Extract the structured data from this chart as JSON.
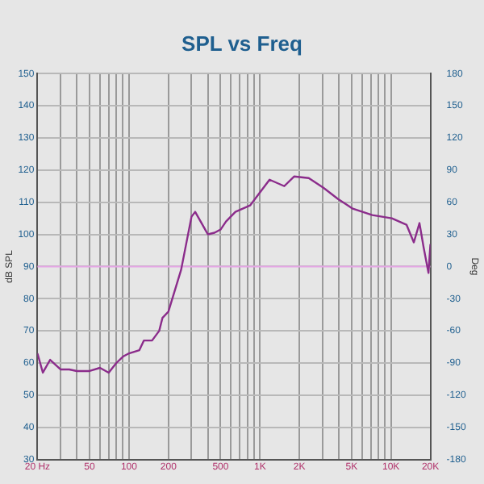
{
  "chart_data": {
    "type": "line",
    "title": "SPL vs Freq",
    "ylabel": "dB SPL",
    "y2label": "Deg",
    "log": "x",
    "grid": true,
    "legend": false,
    "marker": "none",
    "line_style": "solid",
    "xlim": [
      20,
      20000
    ],
    "xticks": [
      {
        "value": 20,
        "label": "20 Hz"
      },
      {
        "value": 30,
        "label": null
      },
      {
        "value": 40,
        "label": null
      },
      50,
      {
        "value": 60,
        "label": null
      },
      {
        "value": 70,
        "label": null
      },
      {
        "value": 80,
        "label": null
      },
      {
        "value": 90,
        "label": null
      },
      100,
      200,
      {
        "value": 300,
        "label": null
      },
      {
        "value": 400,
        "label": null
      },
      500,
      {
        "value": 600,
        "label": null
      },
      {
        "value": 700,
        "label": null
      },
      {
        "value": 800,
        "label": null
      },
      {
        "value": 900,
        "label": null
      },
      {
        "value": 1000,
        "label": "1K"
      },
      {
        "value": 2000,
        "label": "2K"
      },
      {
        "value": 3000,
        "label": null
      },
      {
        "value": 4000,
        "label": null
      },
      {
        "value": 5000,
        "label": "5K"
      },
      {
        "value": 6000,
        "label": null
      },
      {
        "value": 7000,
        "label": null
      },
      {
        "value": 8000,
        "label": null
      },
      {
        "value": 9000,
        "label": null
      },
      {
        "value": 10000,
        "label": "10K"
      },
      {
        "value": 20000,
        "label": "20K"
      }
    ],
    "ylim": [
      30,
      150
    ],
    "yticks": [
      30,
      40,
      50,
      60,
      70,
      80,
      90,
      100,
      110,
      120,
      130,
      140,
      150
    ],
    "y2lim": [
      -180,
      180
    ],
    "y2ticks": [
      -180,
      -150,
      -120,
      -90,
      -60,
      -30,
      0,
      30,
      60,
      90,
      120,
      150,
      180
    ],
    "ref_lines": [
      {
        "axis": "y",
        "value": 90,
        "color": "#e6a6e6"
      }
    ],
    "series": [
      {
        "name": null,
        "color": "#8b2c8b",
        "x": [
          20,
          22,
          25,
          30,
          35,
          40,
          50,
          60,
          70,
          80,
          90,
          100,
          120,
          130,
          150,
          170,
          180,
          200,
          250,
          300,
          320,
          400,
          450,
          500,
          550,
          649,
          840,
          1183,
          1532,
          1820,
          2356,
          3049,
          3944,
          5104,
          7194,
          10150,
          13130,
          14940,
          16500,
          17740,
          19330,
          20000
        ],
        "values": [
          63,
          57,
          61,
          58,
          58,
          57.5,
          57.5,
          58.5,
          57,
          60,
          62,
          63,
          64,
          67,
          67,
          70,
          74,
          76,
          89,
          105.5,
          107,
          100,
          100.5,
          101.5,
          104,
          107,
          109,
          117,
          115,
          118,
          117.5,
          114.5,
          111,
          108,
          106,
          105,
          103,
          97.5,
          103.5,
          96,
          88,
          97
        ]
      }
    ]
  }
}
